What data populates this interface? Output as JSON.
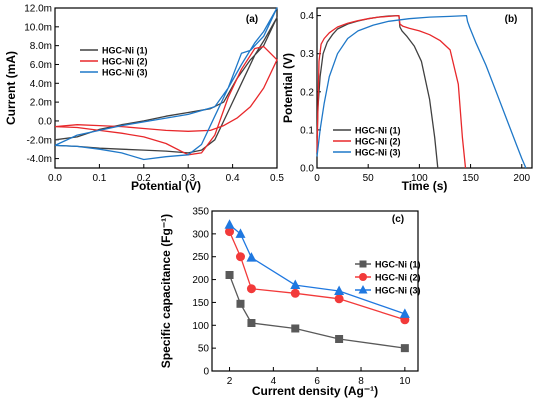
{
  "chart_data": [
    {
      "type": "line",
      "panel_label": "(a)",
      "xlabel": "Potential (V)",
      "ylabel": "Current (mA)",
      "xlim": [
        0.0,
        0.5
      ],
      "ylim": [
        -5,
        12
      ],
      "xticks": [
        0.0,
        0.1,
        0.2,
        0.3,
        0.4,
        0.5
      ],
      "xtick_labels": [
        "0.0",
        "0.1",
        "0.2",
        "0.3",
        "0.4",
        "0.5"
      ],
      "yticks": [
        -4,
        -2,
        0,
        2,
        4,
        6,
        8,
        10,
        12
      ],
      "ytick_labels": [
        "-4.0m",
        "-2.0m",
        "0.0",
        "2.0m",
        "4.0m",
        "6.0m",
        "8.0m",
        "10.0m",
        "12.0m"
      ],
      "legend_position": "upper-left",
      "series": [
        {
          "name": "HGC-Ni (1)",
          "color": "#404040",
          "x": [
            0,
            0.05,
            0.1,
            0.15,
            0.2,
            0.25,
            0.3,
            0.33,
            0.36,
            0.39,
            0.42,
            0.45,
            0.47,
            0.5,
            0.47,
            0.44,
            0.41,
            0.38,
            0.35,
            0.3,
            0.25,
            0.2,
            0.15,
            0.1,
            0.05,
            0
          ],
          "y": [
            -2.6,
            -2.7,
            -2.9,
            -3.0,
            -3.1,
            -3.2,
            -3.4,
            -3.1,
            -2.0,
            1.0,
            4.0,
            7.0,
            8.5,
            11.0,
            8.0,
            6.5,
            4.5,
            2.0,
            1.3,
            0.9,
            0.5,
            0.0,
            -0.4,
            -0.9,
            -1.7,
            -2.0
          ]
        },
        {
          "name": "HGC-Ni (2)",
          "color": "#e8282b",
          "x": [
            0,
            0.05,
            0.1,
            0.15,
            0.2,
            0.25,
            0.3,
            0.33,
            0.36,
            0.39,
            0.42,
            0.45,
            0.47,
            0.5,
            0.47,
            0.44,
            0.41,
            0.38,
            0.35,
            0.3,
            0.25,
            0.2,
            0.15,
            0.1,
            0.05,
            0
          ],
          "y": [
            -0.6,
            -0.7,
            -1.0,
            -1.3,
            -1.7,
            -2.4,
            -3.6,
            -3.4,
            -1.5,
            2.5,
            5.5,
            7.7,
            7.9,
            6.5,
            3.5,
            1.5,
            0.3,
            -0.5,
            -1.0,
            -1.1,
            -1.0,
            -0.8,
            -0.6,
            -0.5,
            -0.4,
            -0.6
          ]
        },
        {
          "name": "HGC-Ni (3)",
          "color": "#1f78c8",
          "x": [
            0,
            0.05,
            0.1,
            0.15,
            0.2,
            0.25,
            0.3,
            0.33,
            0.36,
            0.39,
            0.42,
            0.45,
            0.47,
            0.5,
            0.47,
            0.44,
            0.42,
            0.39,
            0.36,
            0.3,
            0.25,
            0.2,
            0.15,
            0.1,
            0.05,
            0
          ],
          "y": [
            -2.6,
            -2.7,
            -3.0,
            -3.4,
            -4.1,
            -3.8,
            -3.6,
            -2.5,
            0.5,
            3.5,
            6.0,
            8.3,
            9.5,
            12.0,
            9.0,
            7.5,
            7.2,
            3.5,
            1.5,
            0.7,
            0.3,
            -0.1,
            -0.5,
            -1.0,
            -1.5,
            -2.6
          ]
        }
      ]
    },
    {
      "type": "line",
      "panel_label": "(b)",
      "xlabel": "Time (s)",
      "ylabel": "Potential (V)",
      "xlim": [
        0,
        210
      ],
      "ylim": [
        0,
        0.42
      ],
      "xticks": [
        0,
        50,
        100,
        150,
        200
      ],
      "xtick_labels": [
        "0",
        "50",
        "100",
        "150",
        "200"
      ],
      "yticks": [
        0.0,
        0.1,
        0.2,
        0.3,
        0.4
      ],
      "ytick_labels": [
        "0.0",
        "0.1",
        "0.2",
        "0.3",
        "0.4"
      ],
      "legend_position": "lower-left",
      "series": [
        {
          "name": "HGC-Ni (1)",
          "color": "#404040",
          "x": [
            0,
            1,
            3,
            6,
            10,
            15,
            20,
            30,
            40,
            50,
            60,
            70,
            80,
            81,
            83,
            88,
            95,
            102,
            110,
            115,
            118
          ],
          "y": [
            0.08,
            0.16,
            0.24,
            0.3,
            0.33,
            0.35,
            0.365,
            0.378,
            0.386,
            0.392,
            0.396,
            0.399,
            0.4,
            0.37,
            0.36,
            0.345,
            0.32,
            0.28,
            0.18,
            0.08,
            0.0
          ]
        },
        {
          "name": "HGC-Ni (2)",
          "color": "#e8282b",
          "x": [
            0,
            1,
            2,
            4,
            7,
            12,
            20,
            30,
            40,
            50,
            60,
            70,
            80,
            81,
            84,
            90,
            100,
            110,
            120,
            130,
            138,
            142,
            145
          ],
          "y": [
            0.04,
            0.16,
            0.28,
            0.325,
            0.34,
            0.355,
            0.37,
            0.38,
            0.387,
            0.392,
            0.396,
            0.398,
            0.4,
            0.378,
            0.372,
            0.367,
            0.36,
            0.35,
            0.335,
            0.31,
            0.22,
            0.08,
            0.0
          ]
        },
        {
          "name": "HGC-Ni (3)",
          "color": "#1f78c8",
          "x": [
            0,
            3,
            7,
            12,
            20,
            30,
            40,
            55,
            70,
            90,
            110,
            130,
            146,
            147,
            149,
            155,
            165,
            175,
            185,
            195,
            200,
            204
          ],
          "y": [
            0.03,
            0.1,
            0.17,
            0.24,
            0.3,
            0.34,
            0.36,
            0.375,
            0.385,
            0.392,
            0.396,
            0.398,
            0.4,
            0.385,
            0.37,
            0.33,
            0.27,
            0.2,
            0.13,
            0.06,
            0.025,
            0.0
          ]
        }
      ]
    },
    {
      "type": "scatter",
      "panel_label": "(c)",
      "xlabel": "Current density (Ag⁻¹)",
      "ylabel": "Specific capacitance (Fg⁻¹)",
      "xlim": [
        1.2,
        10.6
      ],
      "ylim": [
        0,
        350
      ],
      "xticks": [
        2,
        4,
        6,
        8,
        10
      ],
      "xtick_labels": [
        "2",
        "4",
        "6",
        "8",
        "10"
      ],
      "yticks": [
        0,
        50,
        100,
        150,
        200,
        250,
        300,
        350
      ],
      "ytick_labels": [
        "0",
        "50",
        "100",
        "150",
        "200",
        "250",
        "300",
        "350"
      ],
      "legend_position": "right",
      "x": [
        2,
        2.5,
        3,
        5,
        7,
        10
      ],
      "series": [
        {
          "name": "HGC-Ni (1)",
          "color": "#595959",
          "marker": "square",
          "values": [
            210,
            147,
            105,
            93,
            70,
            50
          ]
        },
        {
          "name": "HGC-Ni (2)",
          "color": "#f23a3a",
          "marker": "circle",
          "values": [
            305,
            250,
            180,
            170,
            158,
            112
          ]
        },
        {
          "name": "HGC-Ni (3)",
          "color": "#1f78e0",
          "marker": "triangle",
          "values": [
            320,
            300,
            248,
            188,
            175,
            125
          ]
        }
      ]
    }
  ]
}
